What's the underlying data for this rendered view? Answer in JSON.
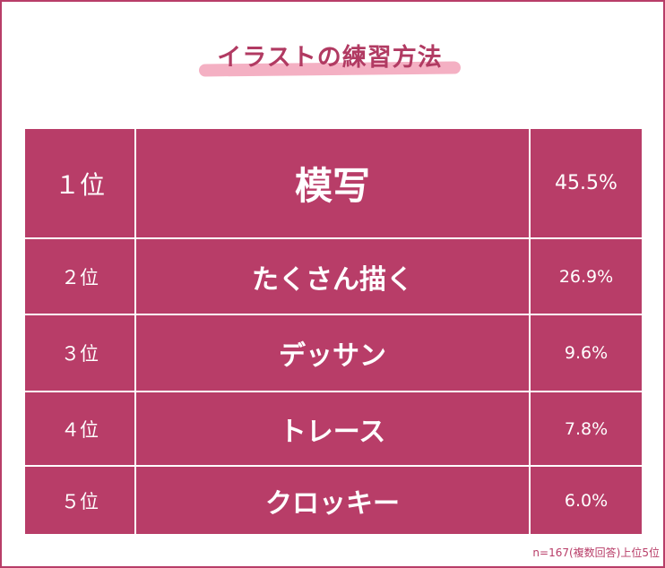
{
  "title": "イラストの練習方法",
  "colors": {
    "accent": "#b83d68",
    "highlight": "#f3a7bd",
    "text_on_accent": "#ffffff"
  },
  "chart_data": {
    "type": "table",
    "title": "イラストの練習方法",
    "rows": [
      {
        "rank": "１位",
        "method": "模写",
        "percent": "45.5%"
      },
      {
        "rank": "２位",
        "method": "たくさん描く",
        "percent": "26.9%"
      },
      {
        "rank": "３位",
        "method": "デッサン",
        "percent": "9.6%"
      },
      {
        "rank": "４位",
        "method": "トレース",
        "percent": "7.8%"
      },
      {
        "rank": "５位",
        "method": "クロッキー",
        "percent": "6.0%"
      }
    ],
    "values": [
      45.5,
      26.9,
      9.6,
      7.8,
      6.0
    ],
    "categories": [
      "模写",
      "たくさん描く",
      "デッサン",
      "トレース",
      "クロッキー"
    ]
  },
  "note": "n=167(複数回答)上位5位"
}
